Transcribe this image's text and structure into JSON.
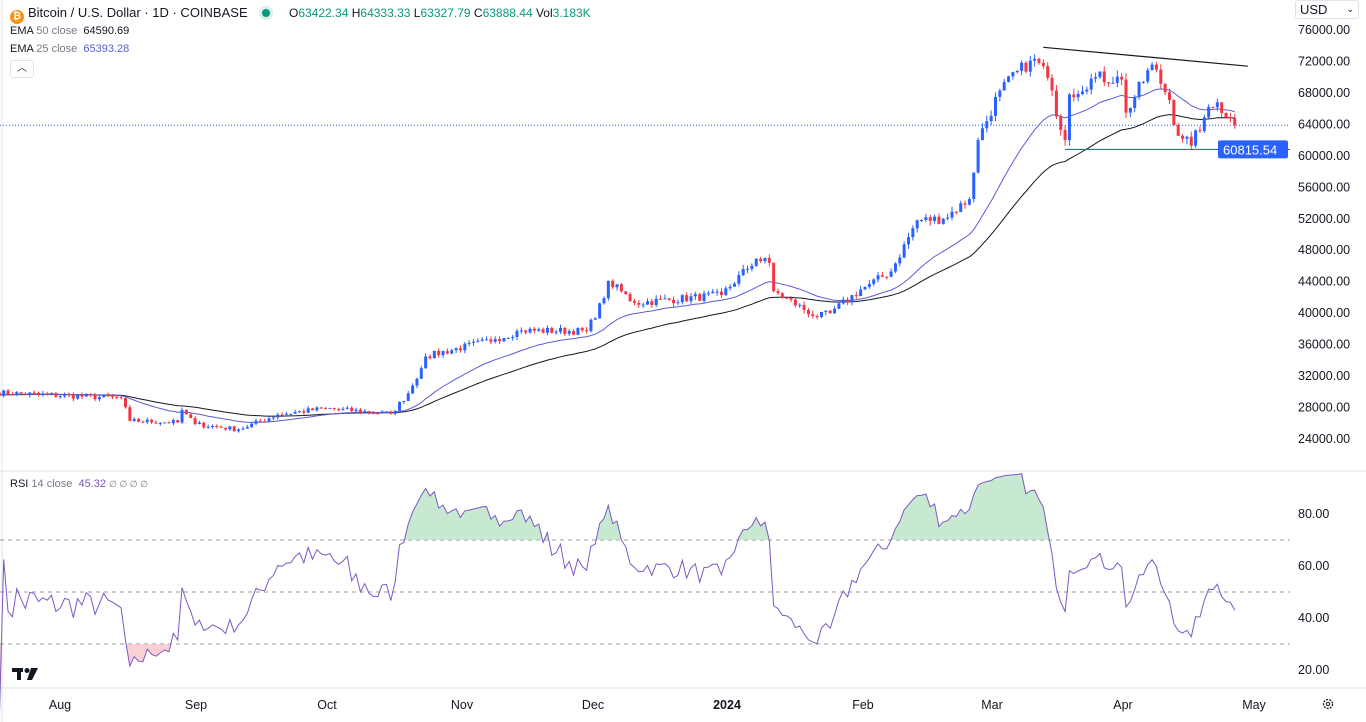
{
  "header": {
    "symbol": "Bitcoin / U.S. Dollar · 1D · COINBASE",
    "open_label": "O",
    "open": "63422.34",
    "high_label": "H",
    "high": "64333.33",
    "low_label": "L",
    "low": "63327.79",
    "close_label": "C",
    "close": "63888.44",
    "vol_label": "Vol",
    "vol": "3.183K",
    "ema50_name": "EMA",
    "ema50_params": "50 close",
    "ema50_value": "64590.69",
    "ema25_name": "EMA",
    "ema25_params": "25 close",
    "ema25_value": "65393.28",
    "collapse_icon": "chevron-up-icon"
  },
  "currency_select": "USD",
  "rsi_legend": {
    "name": "RSI",
    "params": "14 close",
    "value": "45.32",
    "extra": "∅ ∅ ∅ ∅"
  },
  "colors": {
    "up": "#2962ff",
    "down": "#f23645",
    "ema25": "#5b5bd6",
    "ema50": "#131722",
    "rsi": "#7e57c2",
    "support": "#2962ff"
  },
  "chart_data": [
    {
      "type": "candlestick",
      "title": "Bitcoin / U.S. Dollar · 1D · COINBASE",
      "approx_close_anchors": [
        [
          "2023-07-17",
          29900
        ],
        [
          "2023-08-15",
          29200
        ],
        [
          "2023-08-17",
          26300
        ],
        [
          "2023-08-28",
          26100
        ],
        [
          "2023-08-29",
          27700
        ],
        [
          "2023-09-01",
          25900
        ],
        [
          "2023-09-11",
          25200
        ],
        [
          "2023-09-20",
          27100
        ],
        [
          "2023-10-01",
          27900
        ],
        [
          "2023-10-16",
          27200
        ],
        [
          "2023-10-20",
          29800
        ],
        [
          "2023-10-23",
          33000
        ],
        [
          "2023-10-24",
          34500
        ],
        [
          "2023-11-09",
          36700
        ],
        [
          "2023-11-15",
          37800
        ],
        [
          "2023-11-30",
          37700
        ],
        [
          "2023-12-04",
          41900
        ],
        [
          "2023-12-05",
          44100
        ],
        [
          "2023-12-11",
          41300
        ],
        [
          "2023-12-31",
          42300
        ],
        [
          "2024-01-08",
          46900
        ],
        [
          "2024-01-11",
          46400
        ],
        [
          "2024-01-12",
          42800
        ],
        [
          "2024-01-22",
          39500
        ],
        [
          "2024-01-25",
          40000
        ],
        [
          "2024-02-01",
          43000
        ],
        [
          "2024-02-08",
          45300
        ],
        [
          "2024-02-14",
          51800
        ],
        [
          "2024-02-20",
          52000
        ],
        [
          "2024-02-26",
          54500
        ],
        [
          "2024-02-28",
          62000
        ],
        [
          "2024-03-04",
          68300
        ],
        [
          "2024-03-11",
          72100
        ],
        [
          "2024-03-14",
          71400
        ],
        [
          "2024-03-19",
          62000
        ],
        [
          "2024-03-20",
          67800
        ],
        [
          "2024-03-26",
          70000
        ],
        [
          "2024-04-01",
          69700
        ],
        [
          "2024-04-02",
          65500
        ],
        [
          "2024-04-08",
          71600
        ],
        [
          "2024-04-12",
          67100
        ],
        [
          "2024-04-13",
          63900
        ],
        [
          "2024-04-17",
          61300
        ],
        [
          "2024-04-20",
          64900
        ],
        [
          "2024-04-23",
          66800
        ],
        [
          "2024-04-27",
          63888.44
        ]
      ],
      "indicators": [
        "EMA 50 close",
        "EMA 25 close"
      ],
      "last_price": 63888.44,
      "y_ticks": [
        "76000.00",
        "72000.00",
        "68000.00",
        "64000.00",
        "60000.00",
        "56000.00",
        "52000.00",
        "48000.00",
        "44000.00",
        "40000.00",
        "36000.00",
        "32000.00",
        "28000.00",
        "24000.00"
      ],
      "ylim": [
        24000,
        76000
      ],
      "x_ticks": [
        "Aug",
        "Sep",
        "Oct",
        "Nov",
        "Dec",
        "2024",
        "Feb",
        "Mar",
        "Apr",
        "May"
      ],
      "annotations": {
        "resistance_trendline": [
          [
            "2024-03-14",
            73800
          ],
          [
            "2024-04-30",
            71400
          ]
        ],
        "support_line": {
          "from": "2024-03-19",
          "price": 60815.54,
          "label": "60815.54"
        }
      }
    },
    {
      "type": "line",
      "title": "RSI 14 close",
      "ylim": [
        15,
        92
      ],
      "y_ticks": [
        "80.00",
        "60.00",
        "40.00",
        "20.00"
      ],
      "bands": [
        70,
        50,
        30
      ],
      "last_value": 45.32
    }
  ]
}
